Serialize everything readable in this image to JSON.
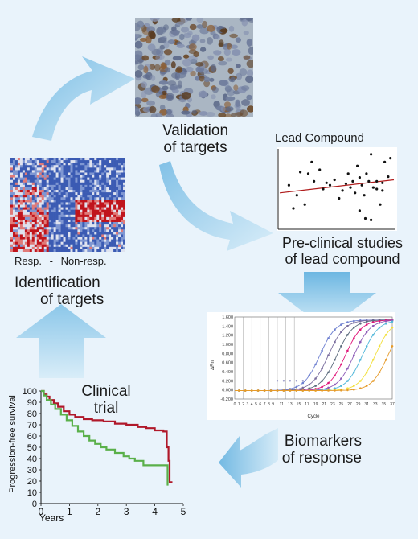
{
  "stages": {
    "validation": {
      "line1": "Validation",
      "line2": "of targets"
    },
    "preclinical": {
      "line1": "Pre-clinical studies",
      "line2": "of lead compound"
    },
    "biomarkers": {
      "line1": "Biomarkers",
      "line2": "of response"
    },
    "clinical": {
      "line1": "Clinical",
      "line2": "trial"
    },
    "identification": {
      "line1": "Identification",
      "line2": "of targets"
    }
  },
  "heatmap_caption": {
    "left": "Resp.",
    "sep": "-",
    "right": "Non-resp."
  },
  "scatter_title": "Lead Compound",
  "colors": {
    "background": "#e9f3fb",
    "arrow": "#a8d4ef",
    "km_high": "#b0182a",
    "km_low": "#5ab04a",
    "heat_blue": "#3b5bb3",
    "heat_red": "#c0141c",
    "regression": "#b01c1c"
  },
  "charts": {
    "km": {
      "type": "line",
      "ylabel": "Progression-free survival",
      "xlabel": "Years",
      "xticks": [
        "0",
        "1",
        "2",
        "3",
        "4",
        "5"
      ],
      "yticks": [
        "100",
        "90",
        "80",
        "70",
        "60",
        "50",
        "40",
        "30",
        "20",
        "10",
        "0"
      ],
      "xlim": [
        0,
        5
      ],
      "ylim": [
        0,
        100
      ]
    },
    "pcr": {
      "type": "line",
      "ylabel": "ΔRn",
      "xlabel": "Cycle",
      "yticks": [
        "1.600",
        "1.400",
        "1.200",
        "1.000",
        "0.800",
        "0.600",
        "0.400",
        "0.200",
        "0.000",
        "-0.200"
      ],
      "xticks": [
        "0",
        "1",
        "2",
        "3",
        "4",
        "5",
        "6",
        "7",
        "8",
        "9",
        "11",
        "13",
        "15",
        "17",
        "19",
        "21",
        "23",
        "25",
        "27",
        "29",
        "31",
        "33",
        "35",
        "37"
      ],
      "ylim": [
        -0.2,
        1.6
      ],
      "xlim": [
        0,
        37
      ]
    },
    "scatter": {
      "type": "scatter"
    }
  },
  "chart_data": [
    {
      "type": "line",
      "name": "kaplan-meier",
      "xlabel": "Years",
      "ylabel": "Progression-free survival",
      "xlim": [
        0,
        5
      ],
      "ylim": [
        0,
        100
      ],
      "series": [
        {
          "color": "#b0182a",
          "x": [
            0,
            0.1,
            0.2,
            0.3,
            0.45,
            0.6,
            0.8,
            1.0,
            1.2,
            1.5,
            1.8,
            2.2,
            2.6,
            3.0,
            3.4,
            3.7,
            4.0,
            4.3,
            4.42,
            4.48,
            4.52,
            4.62
          ],
          "y": [
            100,
            97,
            95,
            92,
            89,
            86,
            82,
            79,
            77,
            75,
            74,
            73,
            71,
            70,
            68,
            67,
            65,
            64,
            50,
            38,
            19,
            19
          ]
        },
        {
          "color": "#5ab04a",
          "x": [
            0,
            0.1,
            0.2,
            0.35,
            0.5,
            0.7,
            0.9,
            1.1,
            1.3,
            1.5,
            1.7,
            1.9,
            2.1,
            2.3,
            2.6,
            2.9,
            3.1,
            3.3,
            3.6,
            4.0,
            4.4,
            4.45
          ],
          "y": [
            100,
            96,
            92,
            88,
            84,
            79,
            74,
            69,
            64,
            60,
            56,
            53,
            50,
            48,
            45,
            42,
            40,
            38,
            34,
            34,
            34,
            16
          ]
        }
      ]
    },
    {
      "type": "scatter",
      "name": "lead-compound",
      "title": "Lead Compound",
      "x": [
        0.08,
        0.12,
        0.18,
        0.22,
        0.28,
        0.3,
        0.35,
        0.38,
        0.41,
        0.44,
        0.48,
        0.52,
        0.55,
        0.58,
        0.6,
        0.62,
        0.64,
        0.66,
        0.68,
        0.7,
        0.72,
        0.74,
        0.76,
        0.78,
        0.8,
        0.82,
        0.85,
        0.88,
        0.9,
        0.92,
        0.95,
        0.97,
        0.7,
        0.75,
        0.8,
        0.85,
        0.9,
        0.15,
        0.25
      ],
      "y": [
        0.55,
        0.25,
        0.72,
        0.3,
        0.85,
        0.6,
        0.75,
        0.5,
        0.58,
        0.55,
        0.62,
        0.38,
        0.48,
        0.57,
        0.7,
        0.52,
        0.6,
        0.45,
        0.8,
        0.65,
        0.55,
        0.42,
        0.7,
        0.6,
        0.95,
        0.52,
        0.6,
        0.3,
        0.58,
        0.85,
        0.66,
        0.9,
        0.22,
        0.12,
        0.1,
        0.5,
        0.48,
        0.42,
        0.7
      ],
      "regression": {
        "x": [
          0,
          1
        ],
        "y": [
          0.45,
          0.62
        ]
      }
    },
    {
      "type": "line",
      "name": "qpcr-amplification",
      "xlabel": "Cycle",
      "ylabel": "ΔRn",
      "xlim": [
        0,
        37
      ],
      "ylim": [
        -0.2,
        1.6
      ],
      "threshold": 0.2,
      "series": [
        {
          "color": "#6d7fd0",
          "ct": 20
        },
        {
          "color": "#7a6d9e",
          "ct": 22
        },
        {
          "color": "#5b6b7d",
          "ct": 24
        },
        {
          "color": "#e0177a",
          "ct": 26
        },
        {
          "color": "#8c5ab6",
          "ct": 28
        },
        {
          "color": "#4fb6d9",
          "ct": 30
        },
        {
          "color": "#f2e03c",
          "ct": 33
        },
        {
          "color": "#e69b2a",
          "ct": 36
        }
      ]
    }
  ]
}
